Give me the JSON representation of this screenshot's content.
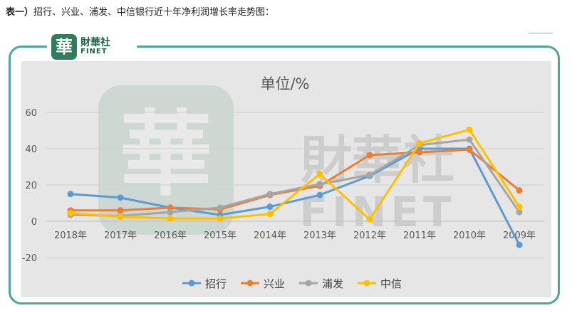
{
  "caption": {
    "bold_part": "表一）",
    "text": "招行、兴业、浦发、中信银行近十年净利润增长率走势图："
  },
  "watermark": {
    "seal": "華",
    "cn": "財華社",
    "en": "FINET"
  },
  "chart_data": {
    "type": "line",
    "title": "单位/%",
    "categories": [
      "2018年",
      "2017年",
      "2016年",
      "2015年",
      "2014年",
      "2013年",
      "2012年",
      "2011年",
      "2010年",
      "2009年"
    ],
    "ylim": [
      -20,
      60
    ],
    "yticks": [
      -20,
      0,
      20,
      40,
      60
    ],
    "grid": true,
    "legend": "bottom",
    "series": [
      {
        "name": "招行",
        "color": "#5b9bd5",
        "values": [
          15,
          13,
          7.5,
          3.5,
          8,
          14.5,
          25,
          40,
          40,
          -13
        ]
      },
      {
        "name": "兴业",
        "color": "#ed7d31",
        "values": [
          6,
          6,
          7.5,
          6.5,
          14.5,
          19.5,
          36.5,
          38,
          39.5,
          17
        ]
      },
      {
        "name": "浦发",
        "color": "#a5a5a5",
        "values": [
          3.5,
          3,
          5,
          7.5,
          15,
          20.5,
          25.5,
          42,
          45,
          5
        ]
      },
      {
        "name": "中信",
        "color": "#ffc000",
        "values": [
          4.5,
          2.5,
          1.5,
          1.5,
          4,
          26,
          1,
          43,
          50.5,
          8
        ]
      }
    ]
  }
}
